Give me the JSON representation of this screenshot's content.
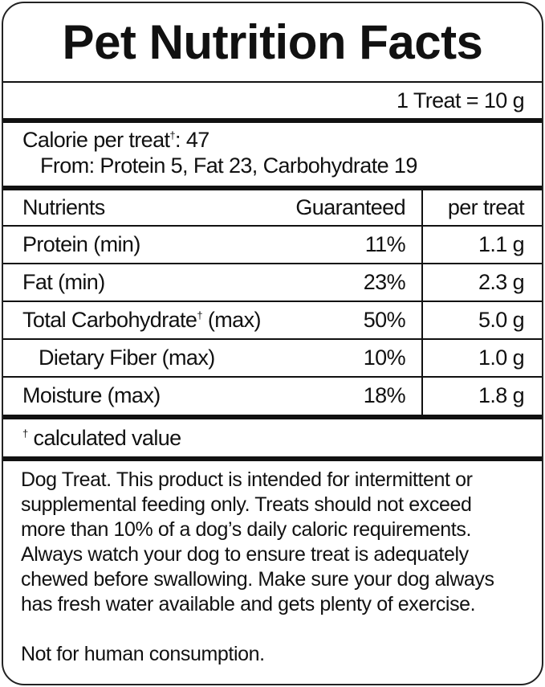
{
  "title": "Pet Nutrition Facts",
  "serving": "1 Treat = 10 g",
  "calories": {
    "label": "Calorie per treat",
    "dagger": "†",
    "value": ": 47",
    "from": "From: Protein 5, Fat 23, Carbohydrate 19"
  },
  "table": {
    "headers": [
      "Nutrients",
      "Guaranteed",
      "per treat"
    ],
    "rows": [
      {
        "name": "Protein (min)",
        "dagger": "",
        "qualifier": "",
        "guaranteed": "11%",
        "per_treat": "1.1 g"
      },
      {
        "name": "Fat (min)",
        "dagger": "",
        "qualifier": "",
        "guaranteed": "23%",
        "per_treat": "2.3 g"
      },
      {
        "name": "Total Carbohydrate",
        "dagger": "†",
        "qualifier": " (max)",
        "guaranteed": "50%",
        "per_treat": "5.0 g"
      },
      {
        "name": "Dietary Fiber (max)",
        "dagger": "",
        "qualifier": "",
        "guaranteed": "10%",
        "per_treat": "1.0 g"
      },
      {
        "name": "Moisture (max)",
        "dagger": "",
        "qualifier": "",
        "guaranteed": "18%",
        "per_treat": "1.8 g"
      }
    ]
  },
  "footnote": {
    "dagger": "†",
    "text": " calculated value"
  },
  "statement": [
    "Dog Treat. This product is intended for intermittent or",
    "supplemental feeding only. Treats should not exceed",
    "more than 10% of a dog’s daily caloric requirements.",
    "Always watch your dog to ensure treat is adequately",
    "chewed before swallowing. Make sure your dog always",
    "has fresh water available and gets plenty of exercise."
  ],
  "warning": "Not for human consumption."
}
